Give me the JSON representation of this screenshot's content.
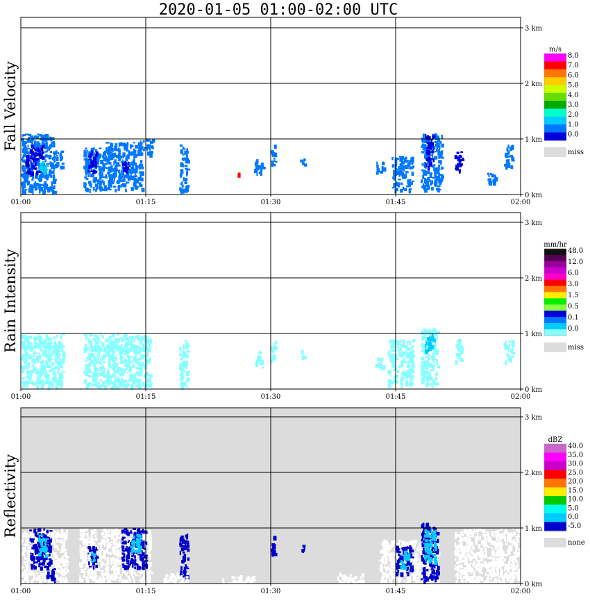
{
  "title": "2020-01-05   01:00-02:00 UTC",
  "chart_data": [
    {
      "type": "heatmap",
      "ylabel": "Fall Velocity",
      "x_ticks": [
        "01:00",
        "01:15",
        "01:30",
        "01:45",
        "02:00"
      ],
      "y_ticks": [
        "0 km",
        "1 km",
        "2 km",
        "3 km"
      ],
      "ylim_km": [
        0,
        3.2
      ],
      "background": "#ffffff",
      "legend": {
        "unit": "m/s",
        "labels": [
          "8.0",
          "7.0",
          "6.0",
          "5.0",
          "4.0",
          "3.0",
          "2.0",
          "1.0",
          "0.0"
        ],
        "colors": [
          "#ff00ff",
          "#ff0000",
          "#ff7700",
          "#ffcc00",
          "#ccff00",
          "#66dd00",
          "#00aa00",
          "#00ffcc",
          "#00ccff",
          "#0077ff",
          "#0000dd"
        ],
        "missing_label": "miss",
        "missing_color": "#dcdcdc"
      },
      "clusters": [
        {
          "t": [
            0,
            4
          ],
          "z": [
            0.05,
            1.1
          ],
          "c": "#0077ff"
        },
        {
          "t": [
            0.5,
            2.5
          ],
          "z": [
            0.4,
            0.9
          ],
          "c": "#0000dd"
        },
        {
          "t": [
            2,
            3
          ],
          "z": [
            0.4,
            0.6
          ],
          "c": "#00ccff"
        },
        {
          "t": [
            4,
            5
          ],
          "z": [
            0.5,
            0.8
          ],
          "c": "#0077ff"
        },
        {
          "t": [
            7.5,
            10
          ],
          "z": [
            0.1,
            0.85
          ],
          "c": "#0077ff"
        },
        {
          "t": [
            8,
            9
          ],
          "z": [
            0.4,
            0.8
          ],
          "c": "#0000dd"
        },
        {
          "t": [
            10,
            14.5
          ],
          "z": [
            0.1,
            0.95
          ],
          "c": "#0077ff"
        },
        {
          "t": [
            12,
            13
          ],
          "z": [
            0.4,
            0.6
          ],
          "c": "#0000dd"
        },
        {
          "t": [
            14,
            15.8
          ],
          "z": [
            0.75,
            1.0
          ],
          "c": "#0077ff"
        },
        {
          "t": [
            19,
            20
          ],
          "z": [
            0.05,
            0.9
          ],
          "c": "#0077ff"
        },
        {
          "t": [
            26,
            26.2
          ],
          "z": [
            0.35,
            0.4
          ],
          "c": "#ff0000"
        },
        {
          "t": [
            28,
            29
          ],
          "z": [
            0.4,
            0.7
          ],
          "c": "#0077ff"
        },
        {
          "t": [
            30,
            30.5
          ],
          "z": [
            0.5,
            0.9
          ],
          "c": "#0077ff"
        },
        {
          "t": [
            33.5,
            34
          ],
          "z": [
            0.55,
            0.7
          ],
          "c": "#0077ff"
        },
        {
          "t": [
            42.5,
            43.5
          ],
          "z": [
            0.4,
            0.6
          ],
          "c": "#0077ff"
        },
        {
          "t": [
            44.5,
            47
          ],
          "z": [
            0.1,
            0.7
          ],
          "c": "#0077ff"
        },
        {
          "t": [
            48,
            50.5
          ],
          "z": [
            0.1,
            1.1
          ],
          "c": "#0077ff"
        },
        {
          "t": [
            48.5,
            49.5
          ],
          "z": [
            0.5,
            1.1
          ],
          "c": "#0000dd"
        },
        {
          "t": [
            52,
            53
          ],
          "z": [
            0.4,
            0.8
          ],
          "c": "#0000dd"
        },
        {
          "t": [
            56,
            57
          ],
          "z": [
            0.2,
            0.4
          ],
          "c": "#0077ff"
        },
        {
          "t": [
            58,
            59
          ],
          "z": [
            0.5,
            0.9
          ],
          "c": "#0077ff"
        }
      ]
    },
    {
      "type": "heatmap",
      "ylabel": "Rain Intensity",
      "x_ticks": [
        "01:00",
        "01:15",
        "01:30",
        "01:45",
        "02:00"
      ],
      "y_ticks": [
        "0 km",
        "1 km",
        "2 km",
        "3 km"
      ],
      "ylim_km": [
        0,
        3.2
      ],
      "background": "#ffffff",
      "legend": {
        "unit": "mm/hr",
        "labels": [
          "48.0",
          "12.0",
          "6.0",
          "3.0",
          "1.5",
          "0.5",
          "0.1",
          "0.0"
        ],
        "colors": [
          "#111111",
          "#550055",
          "#990099",
          "#cc00cc",
          "#ff00cc",
          "#ff0000",
          "#ff7700",
          "#ffee00",
          "#00ee00",
          "#88ff44",
          "#0000dd",
          "#0077ff",
          "#00ccff",
          "#88ffff"
        ],
        "missing_label": "miss",
        "missing_color": "#dcdcdc"
      },
      "clusters": [
        {
          "t": [
            0,
            5
          ],
          "z": [
            0.05,
            1.0
          ],
          "c": "#88ffff"
        },
        {
          "t": [
            7.5,
            15.5
          ],
          "z": [
            0.05,
            1.0
          ],
          "c": "#88ffff"
        },
        {
          "t": [
            19,
            20
          ],
          "z": [
            0.05,
            0.9
          ],
          "c": "#88ffff"
        },
        {
          "t": [
            28,
            29
          ],
          "z": [
            0.4,
            0.7
          ],
          "c": "#88ffff"
        },
        {
          "t": [
            30,
            30.5
          ],
          "z": [
            0.5,
            0.9
          ],
          "c": "#88ffff"
        },
        {
          "t": [
            33.5,
            34
          ],
          "z": [
            0.55,
            0.7
          ],
          "c": "#88ffff"
        },
        {
          "t": [
            42.5,
            43.5
          ],
          "z": [
            0.4,
            0.6
          ],
          "c": "#88ffff"
        },
        {
          "t": [
            44,
            47
          ],
          "z": [
            0.1,
            0.9
          ],
          "c": "#88ffff"
        },
        {
          "t": [
            48,
            50
          ],
          "z": [
            0.05,
            1.1
          ],
          "c": "#88ffff"
        },
        {
          "t": [
            48.5,
            49.5
          ],
          "z": [
            0.7,
            1.0
          ],
          "c": "#00ccff"
        },
        {
          "t": [
            52,
            53
          ],
          "z": [
            0.5,
            0.9
          ],
          "c": "#88ffff"
        },
        {
          "t": [
            58,
            59
          ],
          "z": [
            0.5,
            0.9
          ],
          "c": "#88ffff"
        }
      ]
    },
    {
      "type": "heatmap",
      "ylabel": "Reflectivity",
      "x_ticks": [
        "01:00",
        "01:15",
        "01:30",
        "01:45",
        "02:00"
      ],
      "y_ticks": [
        "0 km",
        "1 km",
        "2 km",
        "3 km"
      ],
      "ylim_km": [
        0,
        3.2
      ],
      "background": "#dcdcdc",
      "legend": {
        "unit": "dBZ",
        "labels": [
          "40.0",
          "35.0",
          "30.0",
          "25.0",
          "20.0",
          "15.0",
          "10.0",
          "5.0",
          "0.0",
          "-5.0"
        ],
        "colors": [
          "#cc66cc",
          "#ff00ff",
          "#cc00cc",
          "#ff0000",
          "#ff7700",
          "#ffee00",
          "#00cc00",
          "#00ffee",
          "#00ccff",
          "#0000cc"
        ],
        "missing_label": "none",
        "missing_color": "#dcdcdc"
      },
      "clusters": [
        {
          "t": [
            0,
            5.5
          ],
          "z": [
            0.05,
            1.0
          ],
          "c": "#ffffff"
        },
        {
          "t": [
            1,
            3.5
          ],
          "z": [
            0.3,
            1.0
          ],
          "c": "#0000cc"
        },
        {
          "t": [
            2,
            3
          ],
          "z": [
            0.5,
            0.9
          ],
          "c": "#00ccff"
        },
        {
          "t": [
            3,
            4
          ],
          "z": [
            0.05,
            0.3
          ],
          "c": "#0000cc"
        },
        {
          "t": [
            7,
            15.5
          ],
          "z": [
            0.05,
            1.0
          ],
          "c": "#ffffff"
        },
        {
          "t": [
            8,
            9
          ],
          "z": [
            0.3,
            0.7
          ],
          "c": "#0000cc"
        },
        {
          "t": [
            8.3,
            8.8
          ],
          "z": [
            0.4,
            0.6
          ],
          "c": "#00ccff"
        },
        {
          "t": [
            12,
            15
          ],
          "z": [
            0.3,
            1.0
          ],
          "c": "#0000cc"
        },
        {
          "t": [
            13,
            14.5
          ],
          "z": [
            0.6,
            0.9
          ],
          "c": "#00ccff"
        },
        {
          "t": [
            19,
            20
          ],
          "z": [
            0.1,
            0.9
          ],
          "c": "#0000cc"
        },
        {
          "t": [
            17,
            20
          ],
          "z": [
            0.0,
            0.2
          ],
          "c": "#ffffff"
        },
        {
          "t": [
            30,
            30.5
          ],
          "z": [
            0.5,
            0.9
          ],
          "c": "#0000cc"
        },
        {
          "t": [
            33.5,
            34
          ],
          "z": [
            0.55,
            0.7
          ],
          "c": "#0000cc"
        },
        {
          "t": [
            24,
            28
          ],
          "z": [
            0.0,
            0.15
          ],
          "c": "#ffffff"
        },
        {
          "t": [
            38,
            41
          ],
          "z": [
            0.0,
            0.2
          ],
          "c": "#ffffff"
        },
        {
          "t": [
            43,
            50
          ],
          "z": [
            0.0,
            0.8
          ],
          "c": "#ffffff"
        },
        {
          "t": [
            45,
            47
          ],
          "z": [
            0.2,
            0.7
          ],
          "c": "#0000cc"
        },
        {
          "t": [
            45.5,
            46.5
          ],
          "z": [
            0.3,
            0.6
          ],
          "c": "#00ccff"
        },
        {
          "t": [
            48,
            50
          ],
          "z": [
            0.05,
            1.1
          ],
          "c": "#0000cc"
        },
        {
          "t": [
            48.3,
            49.7
          ],
          "z": [
            0.4,
            1.0
          ],
          "c": "#00ccff"
        },
        {
          "t": [
            52,
            60
          ],
          "z": [
            0.0,
            1.0
          ],
          "c": "#ffffff"
        }
      ]
    }
  ]
}
